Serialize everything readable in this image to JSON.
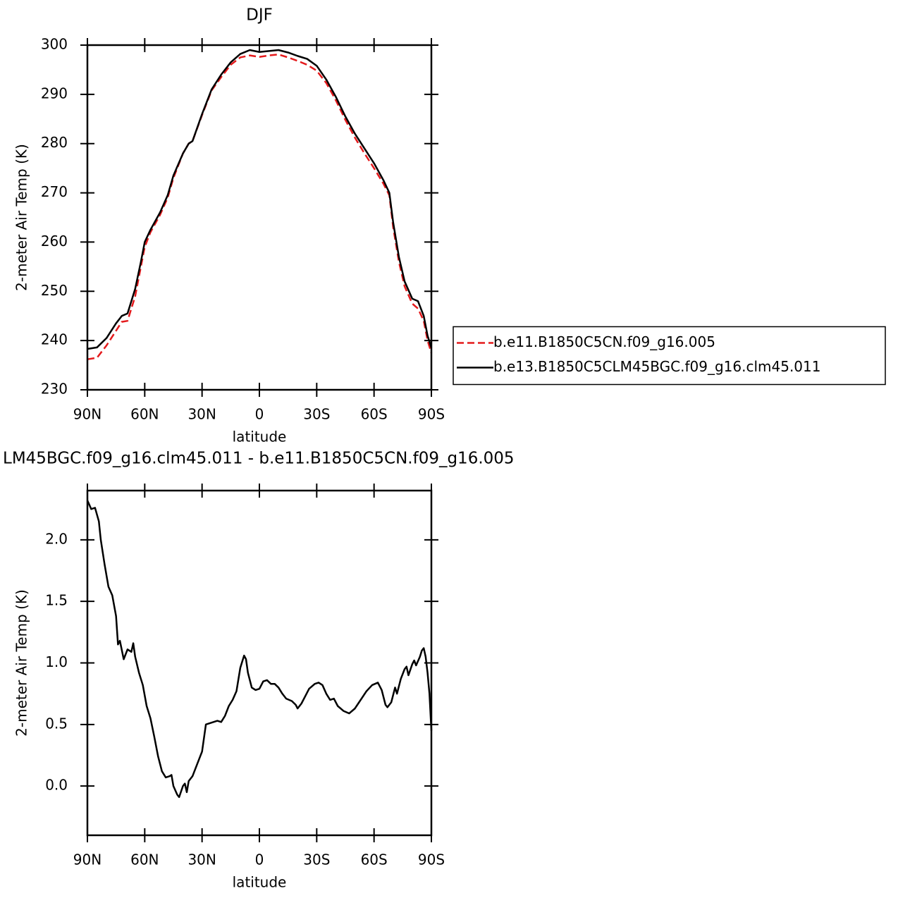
{
  "chart_data": [
    {
      "type": "line",
      "title": "DJF",
      "xlabel": "latitude",
      "ylabel": "2-meter Air Temp (K)",
      "x": [
        90,
        85,
        80,
        75,
        72,
        69,
        65,
        62,
        60,
        57,
        52,
        48,
        45,
        40,
        37,
        35,
        30,
        25,
        20,
        15,
        10,
        5,
        0,
        -5,
        -10,
        -15,
        -20,
        -25,
        -30,
        -35,
        -40,
        -45,
        -50,
        -55,
        -60,
        -65,
        -68,
        -70,
        -73,
        -76,
        -80,
        -83,
        -86,
        -88,
        -90
      ],
      "series": [
        {
          "name": "b.e11.B1850C5CN.f09_g16.005",
          "color": "#e41a1c",
          "line_style": "dashed",
          "values": [
            236.2,
            236.5,
            239,
            242,
            243.8,
            244,
            249,
            255,
            259,
            262,
            265.5,
            269,
            273,
            278,
            280,
            280.5,
            285.8,
            290.8,
            293.5,
            296,
            297.5,
            297.9,
            297.6,
            297.9,
            298.1,
            297.5,
            296.8,
            296,
            294.8,
            292.3,
            288.8,
            284.8,
            281.2,
            278,
            275,
            271.8,
            269.5,
            263,
            256,
            251,
            247.5,
            246.5,
            244,
            240,
            237.5
          ]
        },
        {
          "name": "b.e13.B1850C5CLM45BGC.f09_g16.clm45.011",
          "color": "#000000",
          "line_style": "solid",
          "values": [
            238.3,
            238.6,
            240.5,
            243.5,
            245,
            245.5,
            250.5,
            256,
            260,
            262.5,
            266,
            269.5,
            273.5,
            278,
            280,
            280.5,
            286,
            291,
            294,
            296.5,
            298.2,
            299,
            298.6,
            298.8,
            299,
            298.5,
            297.8,
            297.2,
            295.8,
            293,
            289.5,
            285.5,
            282,
            279,
            276,
            272.5,
            270,
            264,
            257,
            252,
            248.5,
            248,
            245,
            241,
            238.5
          ]
        }
      ],
      "xlim": [
        90,
        -90
      ],
      "xticks": [
        {
          "value": 90,
          "label": "90N"
        },
        {
          "value": 60,
          "label": "60N"
        },
        {
          "value": 30,
          "label": "30N"
        },
        0,
        {
          "value": -30,
          "label": "30S"
        },
        {
          "value": -60,
          "label": "60S"
        },
        {
          "value": -90,
          "label": "90S"
        }
      ],
      "ylim": [
        230,
        300
      ],
      "yticks": [
        230,
        240,
        250,
        260,
        270,
        280,
        290,
        300
      ],
      "legend": "right"
    },
    {
      "type": "line",
      "title": "LM45BGC.f09_g16.clm45.011 - b.e11.B1850C5CN.f09_g16.005",
      "xlabel": "latitude",
      "ylabel": "2-meter Air Temp (K)",
      "x": [
        90,
        88,
        86,
        84,
        83,
        81,
        79,
        77,
        75,
        74,
        73,
        71,
        69,
        67,
        66,
        65,
        63,
        61,
        59,
        57,
        55,
        53,
        51,
        49,
        47,
        46,
        45,
        43,
        42,
        40,
        39,
        38,
        37,
        35,
        33,
        31,
        30,
        28,
        26,
        24,
        22,
        20,
        18,
        16,
        14,
        12,
        10,
        8,
        7,
        6,
        4,
        2,
        0,
        -2,
        -4,
        -6,
        -8,
        -10,
        -12,
        -14,
        -17,
        -19,
        -20,
        -22,
        -24,
        -26,
        -29,
        -31,
        -33,
        -35,
        -37,
        -39,
        -41,
        -44,
        -47,
        -50,
        -53,
        -56,
        -59,
        -62,
        -64,
        -66,
        -67,
        -69,
        -71,
        -72,
        -74,
        -76,
        -77,
        -78,
        -80,
        -81,
        -82,
        -84,
        -85,
        -86,
        -87,
        -88,
        -89,
        -90
      ],
      "color": "#000000",
      "values": [
        2.32,
        2.25,
        2.26,
        2.15,
        2.0,
        1.8,
        1.62,
        1.55,
        1.38,
        1.15,
        1.18,
        1.03,
        1.11,
        1.09,
        1.16,
        1.05,
        0.92,
        0.82,
        0.65,
        0.55,
        0.4,
        0.24,
        0.12,
        0.07,
        0.08,
        0.09,
        0.0,
        -0.07,
        -0.09,
        0.0,
        0.02,
        -0.05,
        0.04,
        0.08,
        0.16,
        0.24,
        0.28,
        0.5,
        0.51,
        0.52,
        0.53,
        0.52,
        0.57,
        0.65,
        0.7,
        0.77,
        0.96,
        1.06,
        1.03,
        0.92,
        0.8,
        0.78,
        0.79,
        0.85,
        0.86,
        0.83,
        0.83,
        0.8,
        0.75,
        0.71,
        0.69,
        0.66,
        0.63,
        0.67,
        0.73,
        0.79,
        0.83,
        0.84,
        0.82,
        0.75,
        0.7,
        0.71,
        0.65,
        0.61,
        0.59,
        0.63,
        0.7,
        0.77,
        0.82,
        0.84,
        0.78,
        0.66,
        0.64,
        0.68,
        0.8,
        0.75,
        0.87,
        0.95,
        0.97,
        0.9,
        0.99,
        1.02,
        0.98,
        1.05,
        1.1,
        1.12,
        1.05,
        0.92,
        0.75,
        0.45
      ],
      "xlim": [
        90,
        -90
      ],
      "xticks": [
        {
          "value": 90,
          "label": "90N"
        },
        {
          "value": 60,
          "label": "60N"
        },
        {
          "value": 30,
          "label": "30N"
        },
        0,
        {
          "value": -30,
          "label": "30S"
        },
        {
          "value": -60,
          "label": "60S"
        },
        {
          "value": -90,
          "label": "90S"
        }
      ],
      "ylim": [
        -0.4,
        2.4
      ],
      "yticks": [
        {
          "value": 0,
          "label": "0.0"
        },
        0.5,
        {
          "value": 1,
          "label": "1.0"
        },
        1.5,
        {
          "value": 2,
          "label": "2.0"
        }
      ]
    }
  ]
}
